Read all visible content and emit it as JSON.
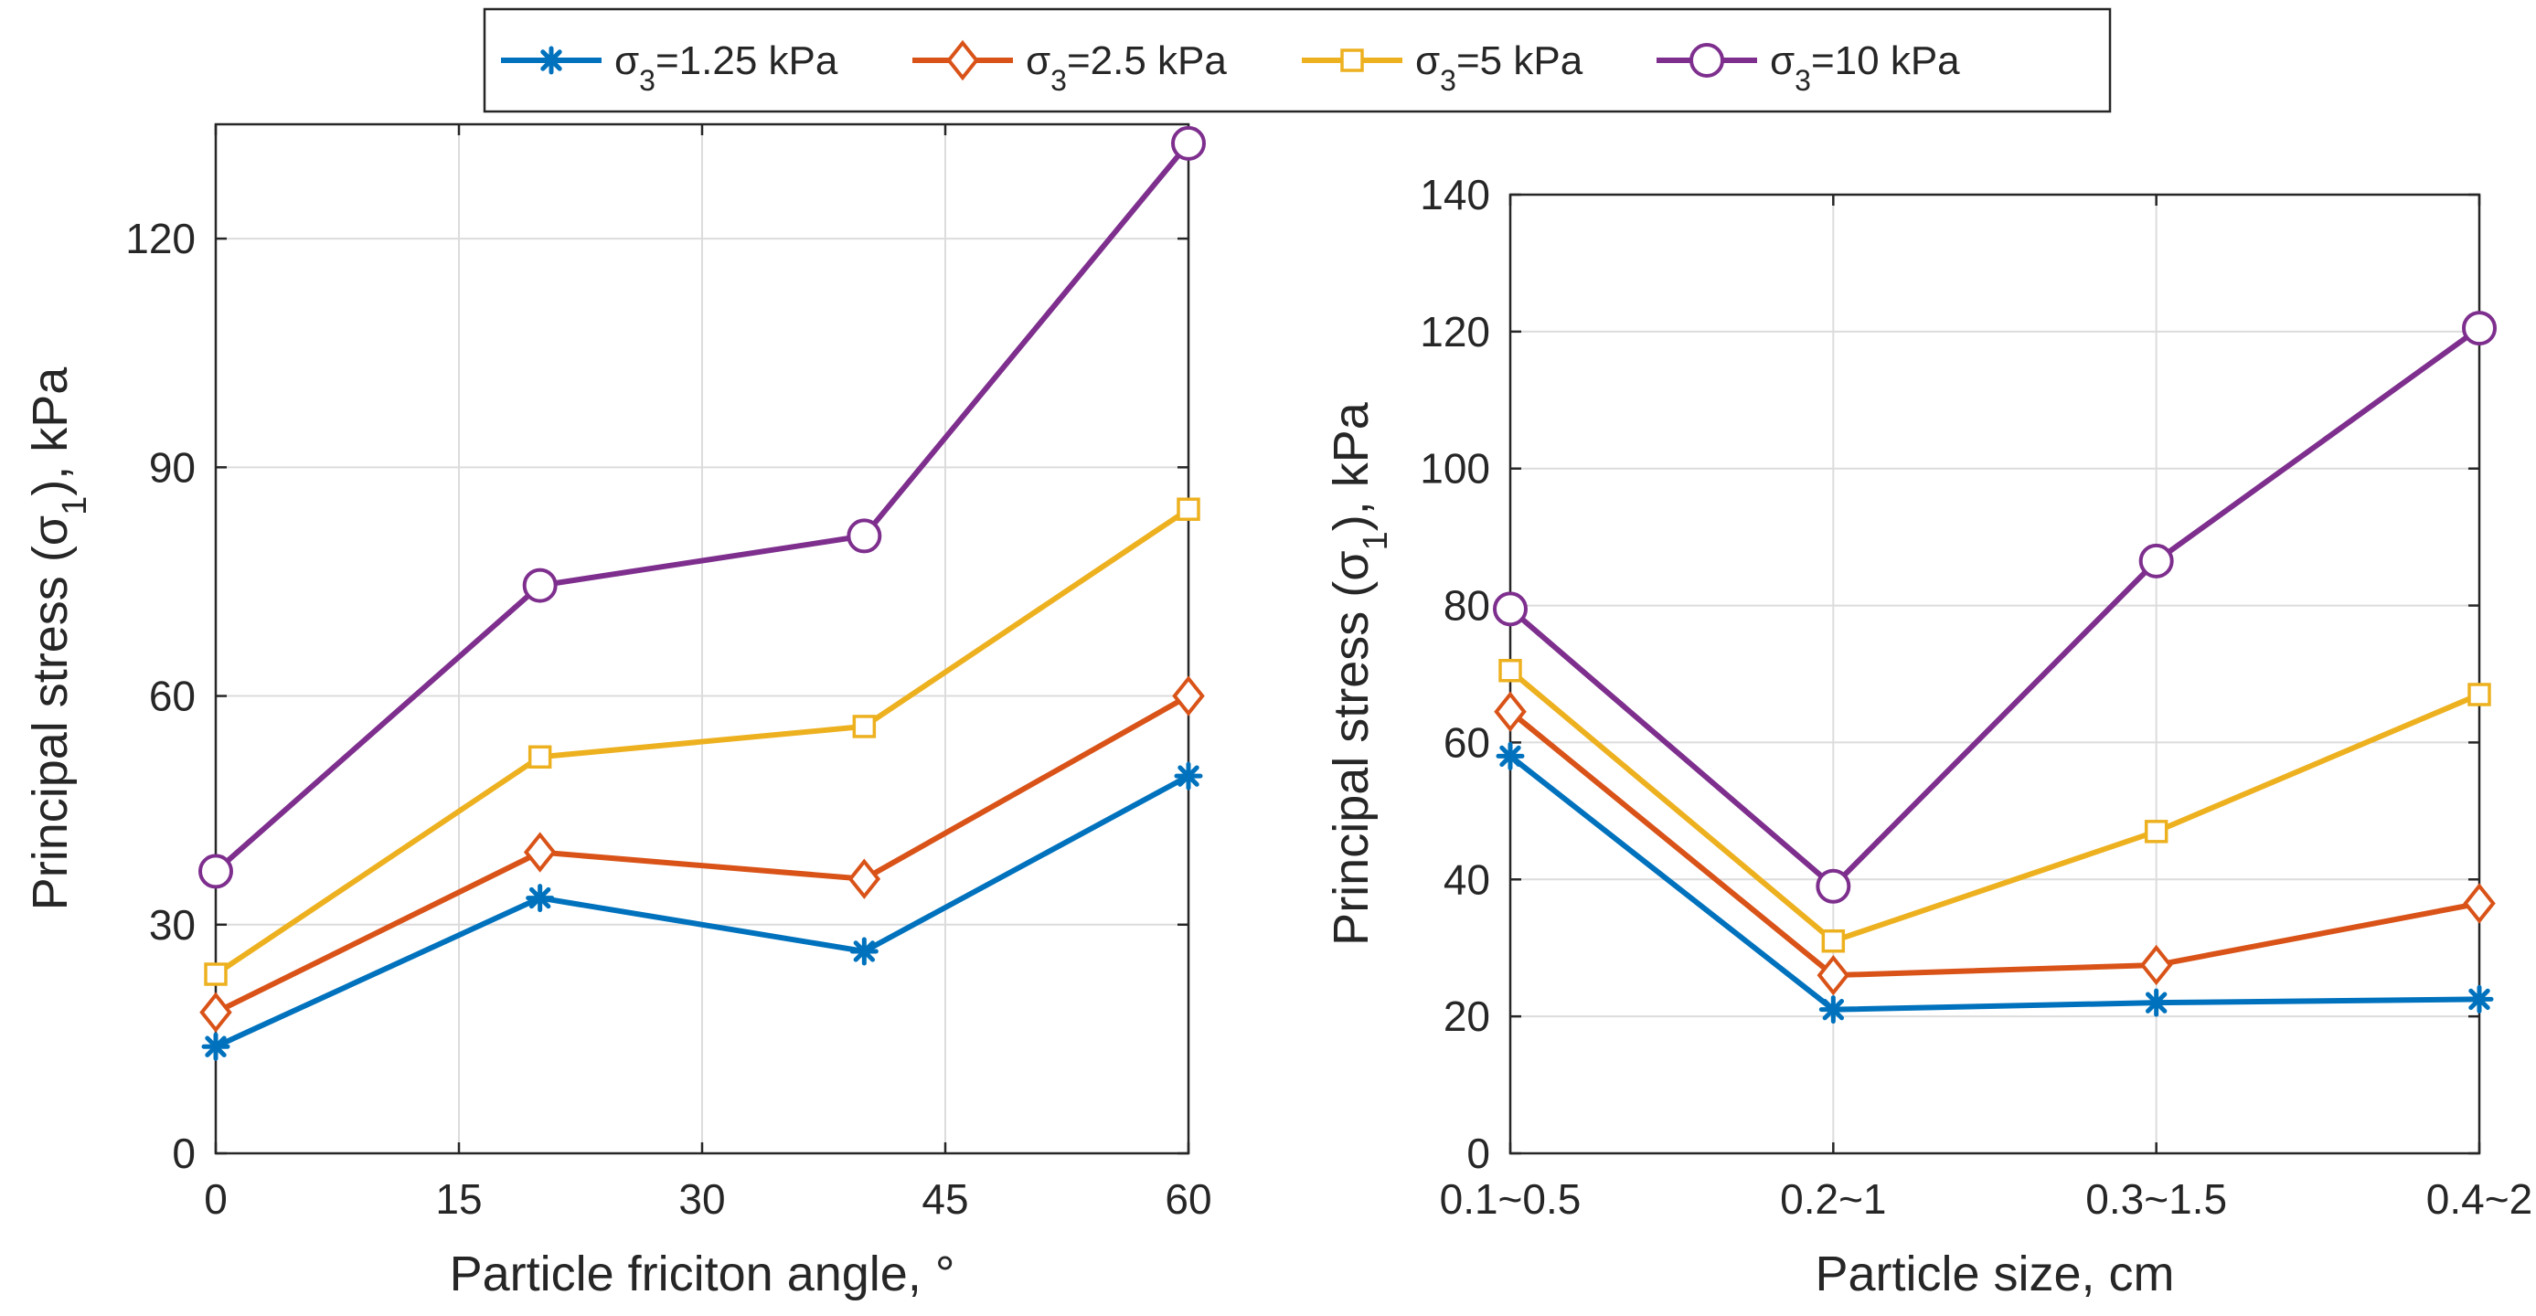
{
  "chart_data": [
    {
      "type": "line",
      "title": "",
      "xlabel": "Particle friciton angle, °",
      "ylabel": "Principal stress (σ1), kPa",
      "ylabel_parts": {
        "main": "Principal stress (σ",
        "sub": "1",
        "tail": "), kPa"
      },
      "x": [
        0,
        20,
        40,
        60
      ],
      "xlim": [
        0,
        60
      ],
      "xticks": [
        0,
        15,
        30,
        45,
        60
      ],
      "xtick_labels": [
        "0",
        "15",
        "30",
        "45",
        "60"
      ],
      "ylim": [
        0,
        135
      ],
      "yticks": [
        0,
        30,
        60,
        90,
        120
      ],
      "ytick_labels": [
        "0",
        "30",
        "60",
        "90",
        "120"
      ],
      "grid": true,
      "series": [
        {
          "name": "σ3=1.25 kPa",
          "values": [
            14,
            33.5,
            26.5,
            49.5
          ]
        },
        {
          "name": "σ3=2.5 kPa",
          "values": [
            18.5,
            39.5,
            36,
            60
          ]
        },
        {
          "name": "σ3=5 kPa",
          "values": [
            23.5,
            52,
            56,
            84.5
          ]
        },
        {
          "name": "σ3=10 kPa",
          "values": [
            37,
            74.5,
            81,
            132.5
          ]
        }
      ]
    },
    {
      "type": "line",
      "title": "",
      "xlabel": "Particle size, cm",
      "ylabel": "Principal stress (σ1), kPa",
      "ylabel_parts": {
        "main": "Principal stress (σ",
        "sub": "1",
        "tail": "), kPa"
      },
      "categories": [
        "0.1~0.5",
        "0.2~1",
        "0.3~1.5",
        "0.4~2"
      ],
      "ylim": [
        0,
        140
      ],
      "yticks": [
        0,
        20,
        40,
        60,
        80,
        100,
        120,
        140
      ],
      "ytick_labels": [
        "0",
        "20",
        "40",
        "60",
        "80",
        "100",
        "120",
        "140"
      ],
      "grid": true,
      "series": [
        {
          "name": "σ3=1.25 kPa",
          "values": [
            58,
            21,
            22,
            22.5
          ]
        },
        {
          "name": "σ3=2.5 kPa",
          "values": [
            64.5,
            26,
            27.5,
            36.5
          ]
        },
        {
          "name": "σ3=5 kPa",
          "values": [
            70.5,
            31,
            47,
            67
          ]
        },
        {
          "name": "σ3=10 kPa",
          "values": [
            79.5,
            39,
            86.5,
            120.5
          ]
        }
      ]
    }
  ],
  "legend": {
    "placement": "top-center",
    "entries": [
      {
        "main": "σ",
        "sub": "3",
        "tail": "=1.25 kPa",
        "color": "#0072BD",
        "marker": "asterisk"
      },
      {
        "main": "σ",
        "sub": "3",
        "tail": "=2.5 kPa",
        "color": "#D95319",
        "marker": "diamond"
      },
      {
        "main": "σ",
        "sub": "3",
        "tail": "=5 kPa",
        "color": "#EDB120",
        "marker": "square"
      },
      {
        "main": "σ",
        "sub": "3",
        "tail": "=10 kPa",
        "color": "#7E2F8E",
        "marker": "circle"
      }
    ]
  },
  "colors": [
    "#0072BD",
    "#D95319",
    "#EDB120",
    "#7E2F8E"
  ],
  "markers": [
    "asterisk",
    "diamond",
    "square",
    "circle"
  ]
}
